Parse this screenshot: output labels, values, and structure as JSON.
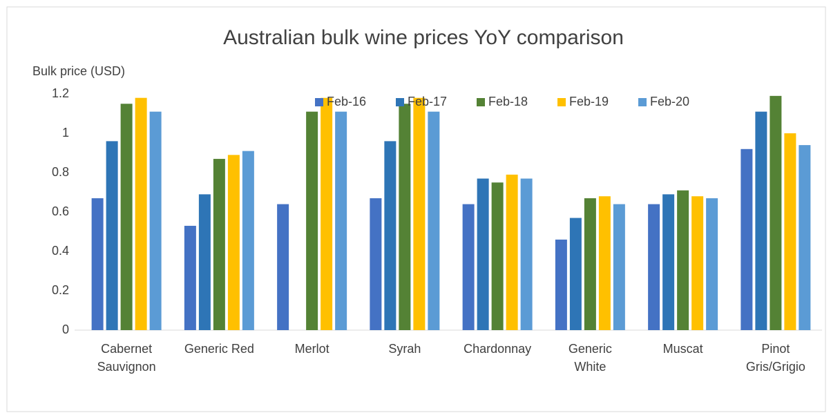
{
  "chart_data": {
    "type": "bar",
    "title": "Australian bulk wine prices YoY comparison",
    "ylabel": "Bulk price (USD)",
    "categories": [
      "Cabernet\nSauvignon",
      "Generic Red",
      "Merlot",
      "Syrah",
      "Chardonnay",
      "Generic\nWhite",
      "Muscat",
      "Pinot\nGris/Grigio"
    ],
    "series": [
      {
        "name": "Feb-16",
        "color": "#4472c4",
        "values": [
          0.67,
          0.53,
          0.64,
          0.67,
          0.64,
          0.46,
          0.64,
          0.92
        ]
      },
      {
        "name": "Feb-17",
        "color": "#2e75b6",
        "values": [
          0.96,
          0.69,
          null,
          0.96,
          0.77,
          0.57,
          0.69,
          1.11
        ]
      },
      {
        "name": "Feb-18",
        "color": "#548235",
        "values": [
          1.15,
          0.87,
          1.11,
          1.15,
          0.75,
          0.67,
          0.71,
          1.19
        ]
      },
      {
        "name": "Feb-19",
        "color": "#ffc000",
        "values": [
          1.18,
          0.89,
          1.18,
          1.18,
          0.79,
          0.68,
          0.68,
          1.0
        ]
      },
      {
        "name": "Feb-20",
        "color": "#5b9bd5",
        "values": [
          1.11,
          0.91,
          1.11,
          1.11,
          0.77,
          0.64,
          0.67,
          0.94
        ]
      }
    ],
    "ylim": [
      0,
      1.2
    ],
    "yticks": [
      0,
      0.2,
      0.4,
      0.6,
      0.8,
      1,
      1.2
    ],
    "grid": false,
    "legend": "top"
  }
}
